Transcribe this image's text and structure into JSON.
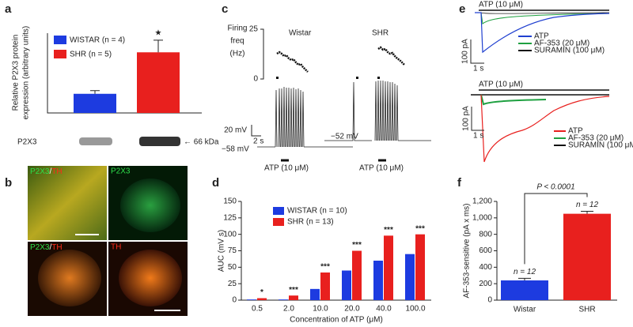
{
  "chart_data": [
    {
      "type": "bar",
      "ylabel": [
        "Relative P2X3 protein",
        "expression (arbitrary units)"
      ],
      "series": [
        {
          "name": "WISTAR (n = 4)",
          "color": "#1d3be0",
          "values": [
            0.6
          ],
          "errors": [
            0.1
          ]
        },
        {
          "name": "SHR (n = 5)",
          "color": "#e8201e",
          "values": [
            1.9
          ],
          "errors": [
            0.38
          ]
        }
      ],
      "ylim": [
        0,
        2.5
      ],
      "annotation": "★"
    },
    {
      "type": "bar",
      "xlabel": "Concentration of ATP (μM)",
      "ylabel": "AUC (mV s)",
      "categories": [
        "0.5",
        "2.0",
        "10.0",
        "20.0",
        "40.0",
        "100.0"
      ],
      "series": [
        {
          "name": "WISTAR (n = 10)",
          "color": "#1d3be0",
          "values": [
            1,
            1,
            17,
            45,
            60,
            70
          ]
        },
        {
          "name": "SHR (n = 13)",
          "color": "#e8201e",
          "values": [
            3,
            7,
            42,
            75,
            98,
            100
          ]
        }
      ],
      "annotations": [
        "*",
        "***",
        "***",
        "***",
        "***",
        "***"
      ],
      "ylim": [
        0,
        150
      ],
      "yticks": [
        0,
        25,
        50,
        75,
        100,
        125,
        150
      ]
    },
    {
      "type": "bar",
      "ylabel": "AF-353-sensitive (pA x ms)",
      "categories": [
        "Wistar",
        "SHR"
      ],
      "values": [
        240,
        1050
      ],
      "errors": [
        25,
        30
      ],
      "colors": [
        "#1d3be0",
        "#e8201e"
      ],
      "annotations": [
        "n = 12",
        "n = 12"
      ],
      "p_label": "P < 0.0001",
      "ylim": [
        0,
        1200
      ],
      "yticks": [
        0,
        200,
        400,
        600,
        800,
        {
          "value": 1000,
          "label": "1,000"
        },
        {
          "value": 1200,
          "label": "1,200"
        }
      ]
    }
  ],
  "panels": {
    "letters": [
      "a",
      "b",
      "c",
      "d",
      "e",
      "f"
    ],
    "a": {
      "blot_label": "P2X3",
      "marker": "← 66 kDa"
    },
    "b": {
      "labels": [
        [
          "P2X3",
          "/",
          "TH"
        ],
        [
          "P2X3"
        ],
        [
          "P2X3",
          "/",
          "TH"
        ],
        [
          "TH"
        ]
      ]
    },
    "c": {
      "axis_label": [
        "Firing",
        "freq",
        "(Hz)"
      ],
      "axis_top": "25",
      "axis_bottom": "0",
      "groups": [
        "Wistar",
        "SHR"
      ],
      "scale_v": "20 mV",
      "scale_t": "2 s",
      "rest": [
        "−58 mV",
        "−52 mV"
      ],
      "stim": [
        "ATP (10 μM)",
        "ATP (10 μM)"
      ]
    },
    "e": {
      "stim": [
        "ATP (10 μM)",
        "ATP (10 μM)"
      ],
      "scale_i": [
        "100 pA",
        "100 pA"
      ],
      "scale_t": [
        "1 s",
        "1 s"
      ],
      "legend": [
        "ATP",
        "AF-353 (20 μM)",
        "SURAMIN (100 μM)"
      ]
    }
  }
}
